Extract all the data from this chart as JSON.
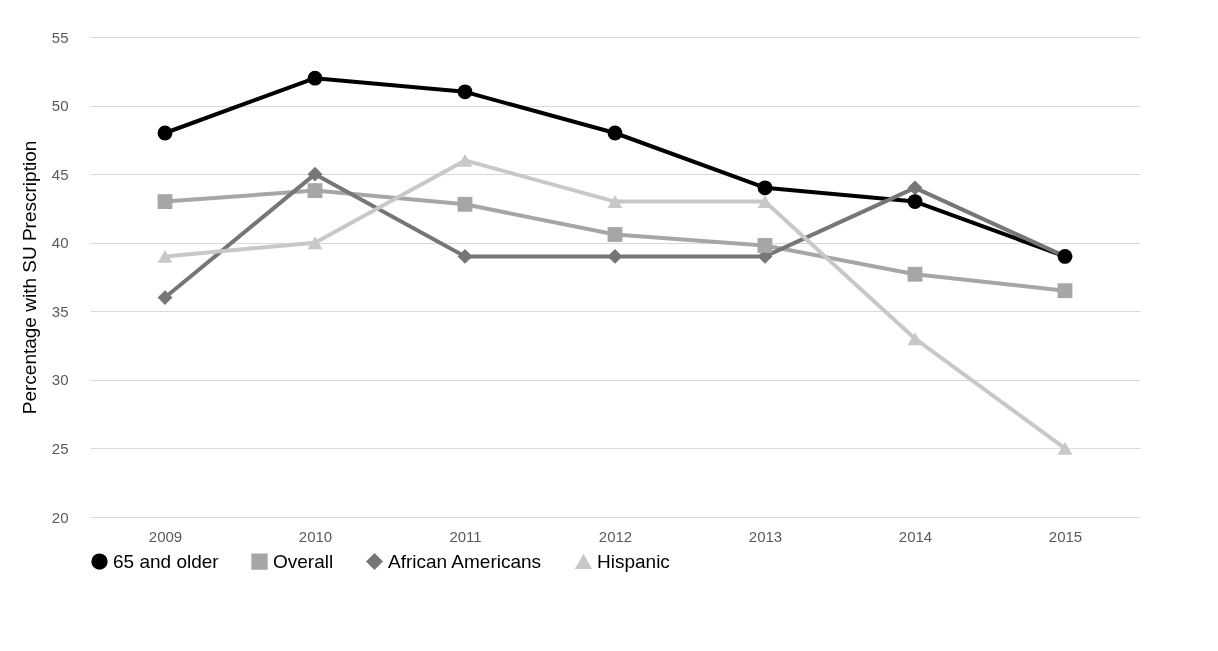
{
  "chart_data": {
    "type": "line",
    "ylabel": "Percentage with SU Prescription",
    "categories": [
      "2009",
      "2010",
      "2011",
      "2012",
      "2013",
      "2014",
      "2015"
    ],
    "series": [
      {
        "name": "65 and older",
        "color": "#000000",
        "marker": "circle",
        "values": [
          48,
          52,
          51,
          48,
          44,
          43,
          39
        ]
      },
      {
        "name": "Overall",
        "color": "#a6a6a6",
        "marker": "square",
        "values": [
          43,
          43.8,
          42.8,
          40.6,
          39.8,
          37.7,
          36.5
        ]
      },
      {
        "name": "African Americans",
        "color": "#767676",
        "marker": "diamond",
        "values": [
          36,
          45,
          39,
          39,
          39,
          44,
          39
        ]
      },
      {
        "name": "Hispanic",
        "color": "#c8c8c8",
        "marker": "triangle",
        "values": [
          39,
          40,
          46,
          43,
          43,
          33,
          25
        ]
      }
    ],
    "ylim": [
      20,
      55
    ],
    "yticks": [
      20,
      25,
      30,
      35,
      40,
      45,
      50,
      55
    ],
    "grid": "y",
    "legend": "bottom",
    "line_style": "solid"
  }
}
